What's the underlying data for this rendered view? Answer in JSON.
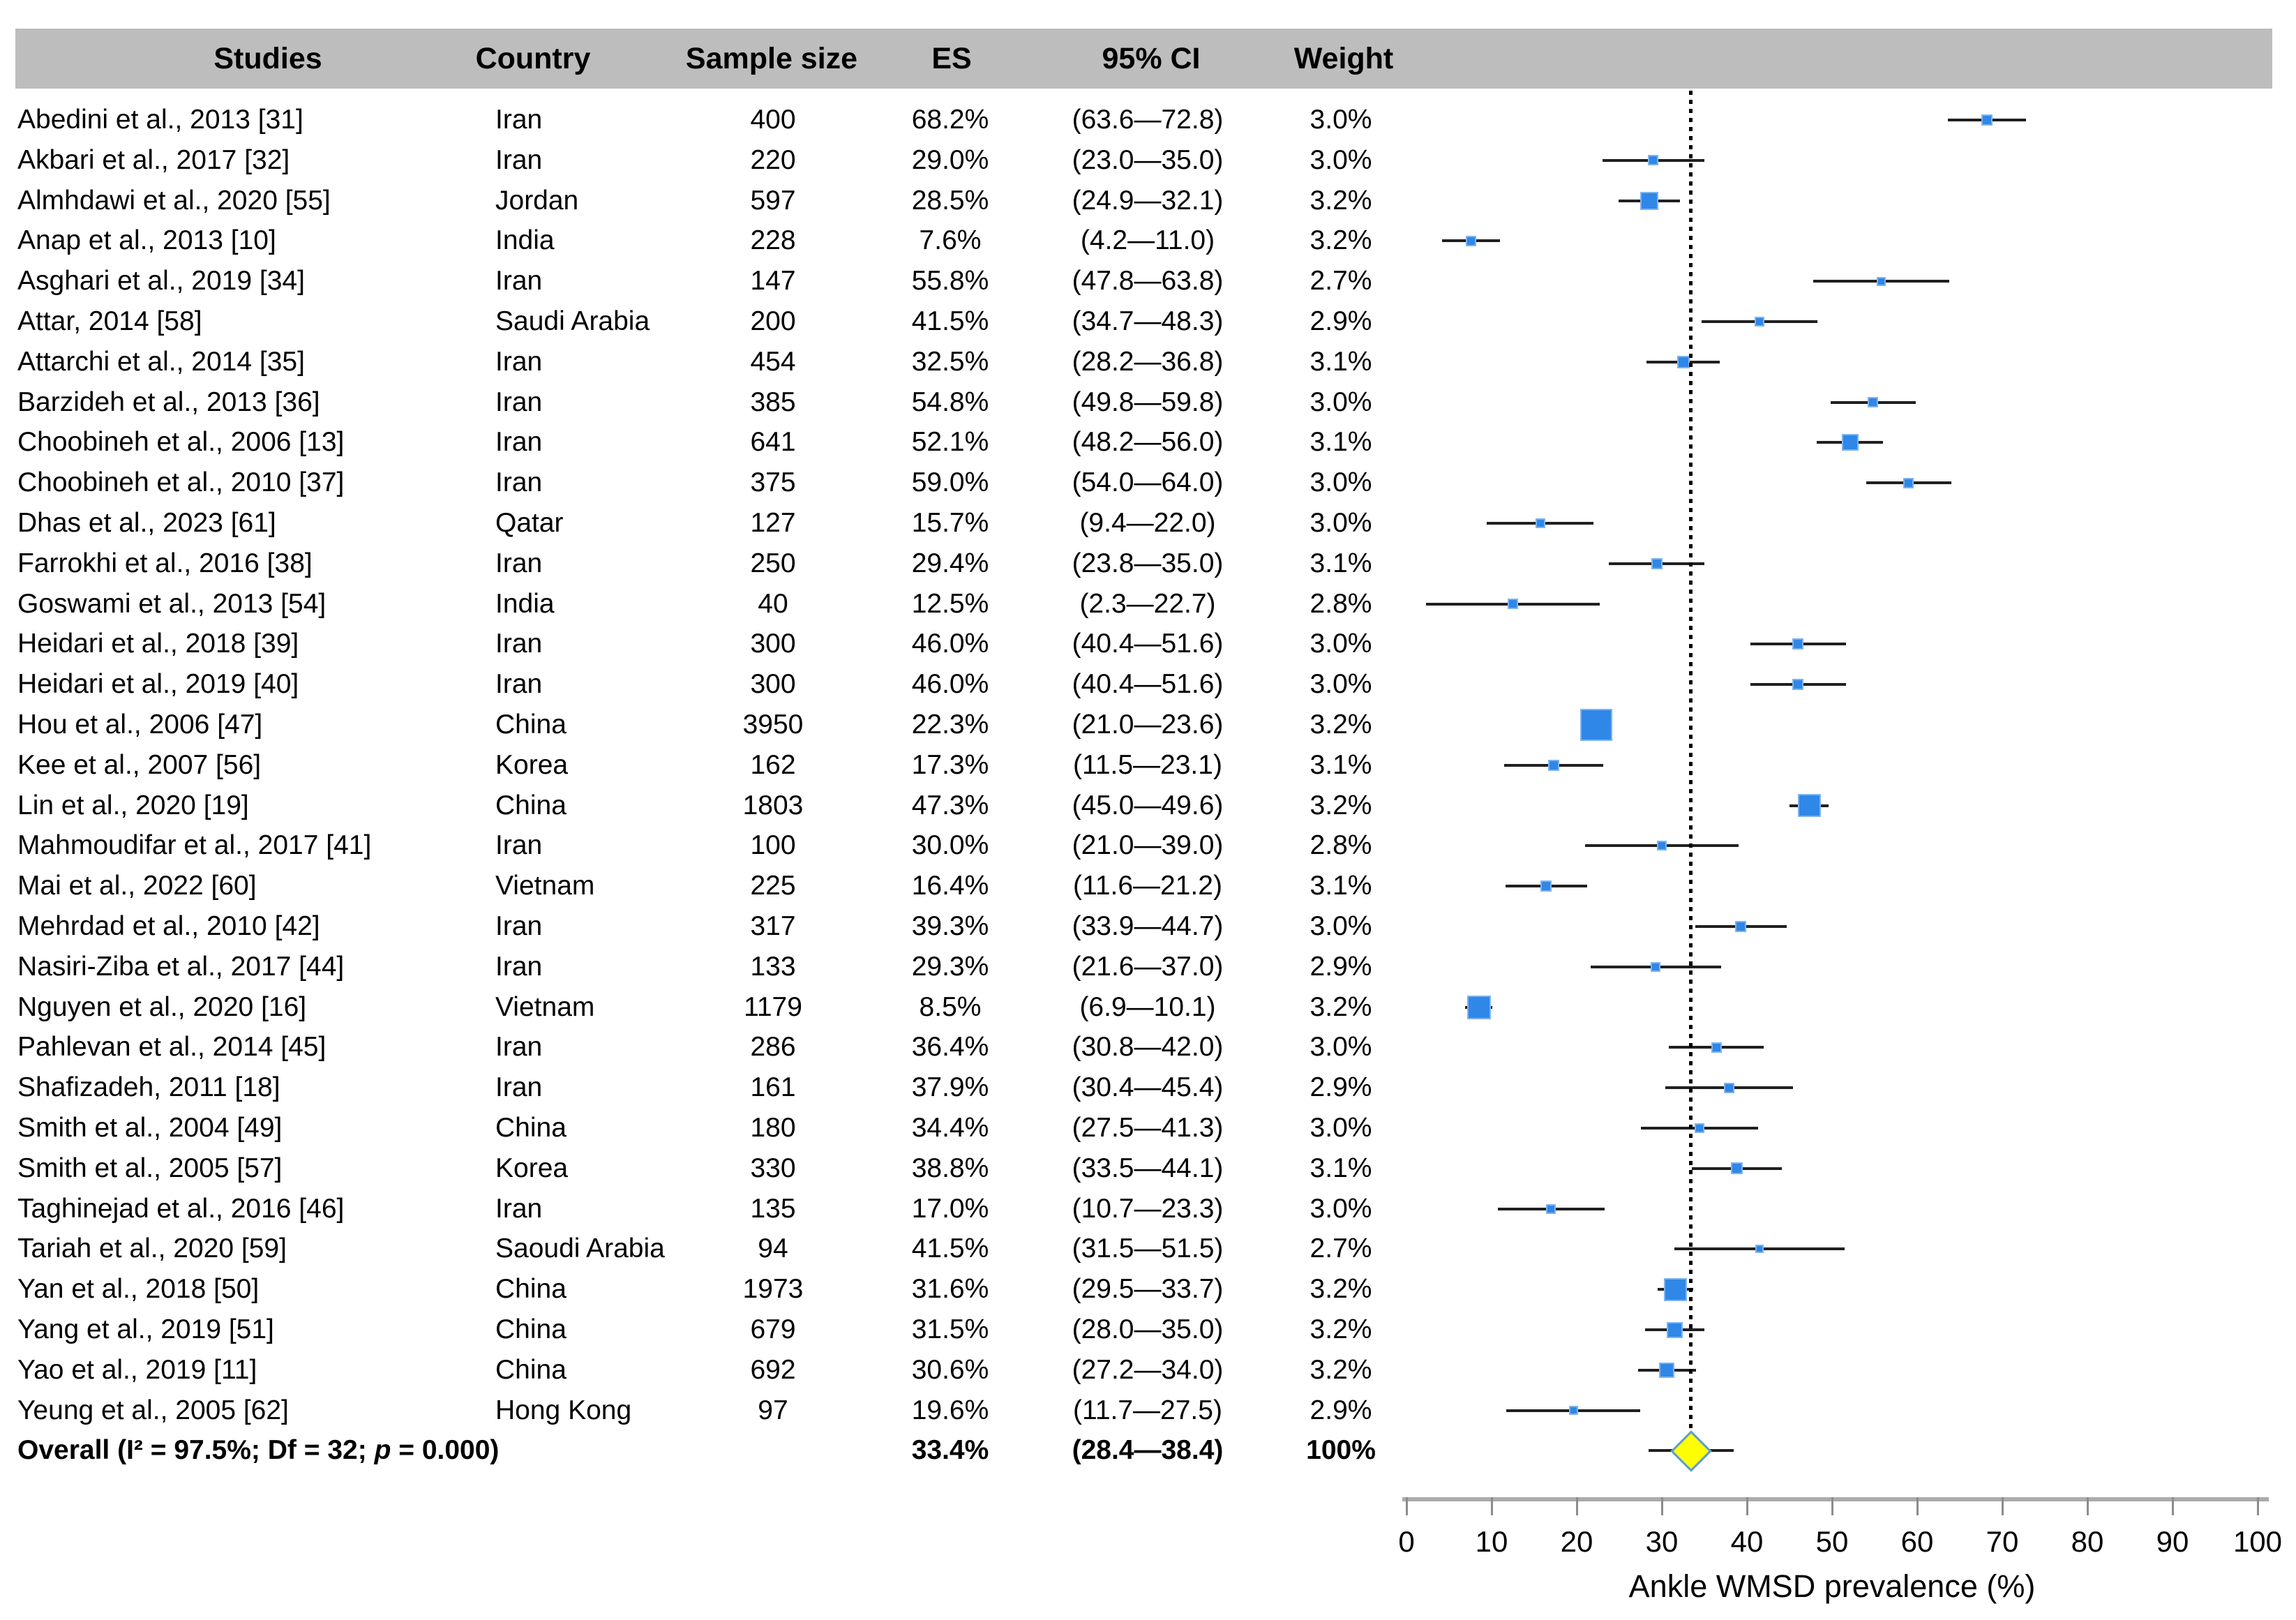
{
  "figure_title": "Forest plot of ankle WMSD prevalence meta-analysis",
  "colors": {
    "header_bg": "#bdbdbd",
    "marker_fill": "#2f87e8",
    "marker_border": "#7fb3ef",
    "ci_line": "#202020",
    "diamond_fill": "#ffff00",
    "diamond_border": "#5b9bd5",
    "reference_line": "#000000",
    "axis_bar": "#ababab",
    "text": "#000000"
  },
  "chart_data": {
    "type": "forest",
    "xlabel": "Ankle WMSD prevalence (%)",
    "xlim": [
      0,
      100
    ],
    "x_ticks": [
      "0",
      "10",
      "20",
      "30",
      "40",
      "50",
      "60",
      "70",
      "80",
      "90",
      "100"
    ],
    "x_tick_values": [
      0,
      10,
      20,
      30,
      40,
      50,
      60,
      70,
      80,
      90,
      100
    ],
    "reference_line_value": 33.4,
    "grid": false,
    "columns": [
      "Studies",
      "Country",
      "Sample size",
      "ES",
      "95% CI",
      "Weight"
    ],
    "studies": [
      {
        "study": "Abedini et al., 2013 [31]",
        "country": "Iran",
        "n": "400",
        "es_label": "68.2%",
        "es": 68.2,
        "ci_label": "(63.6—72.8)",
        "lo": 63.6,
        "hi": 72.8,
        "weight": "3.0%",
        "size": 16
      },
      {
        "study": "Akbari et al., 2017 [32]",
        "country": "Iran",
        "n": "220",
        "es_label": "29.0%",
        "es": 29.0,
        "ci_label": "(23.0—35.0)",
        "lo": 23.0,
        "hi": 35.0,
        "weight": "3.0%",
        "size": 15
      },
      {
        "study": "Almhdawi et al., 2020 [55]",
        "country": "Jordan",
        "n": "597",
        "es_label": "28.5%",
        "es": 28.5,
        "ci_label": "(24.9—32.1)",
        "lo": 24.9,
        "hi": 32.1,
        "weight": "3.2%",
        "size": 26
      },
      {
        "study": "Anap et al., 2013 [10]",
        "country": "India",
        "n": "228",
        "es_label": "7.6%",
        "es": 7.6,
        "ci_label": "(4.2—11.0)",
        "lo": 4.2,
        "hi": 11.0,
        "weight": "3.2%",
        "size": 15
      },
      {
        "study": "Asghari et al., 2019 [34]",
        "country": "Iran",
        "n": "147",
        "es_label": "55.8%",
        "es": 55.8,
        "ci_label": "(47.8—63.8)",
        "lo": 47.8,
        "hi": 63.8,
        "weight": "2.7%",
        "size": 13
      },
      {
        "study": "Attar, 2014 [58]",
        "country": "Saudi Arabia",
        "n": "200",
        "es_label": "41.5%",
        "es": 41.5,
        "ci_label": "(34.7—48.3)",
        "lo": 34.7,
        "hi": 48.3,
        "weight": "2.9%",
        "size": 14
      },
      {
        "study": "Attarchi et al., 2014 [35]",
        "country": "Iran",
        "n": "454",
        "es_label": "32.5%",
        "es": 32.5,
        "ci_label": "(28.2—36.8)",
        "lo": 28.2,
        "hi": 36.8,
        "weight": "3.1%",
        "size": 18
      },
      {
        "study": "Barzideh et al., 2013 [36]",
        "country": "Iran",
        "n": "385",
        "es_label": "54.8%",
        "es": 54.8,
        "ci_label": "(49.8—59.8)",
        "lo": 49.8,
        "hi": 59.8,
        "weight": "3.0%",
        "size": 15
      },
      {
        "study": "Choobineh et al., 2006 [13]",
        "country": "Iran",
        "n": "641",
        "es_label": "52.1%",
        "es": 52.1,
        "ci_label": "(48.2—56.0)",
        "lo": 48.2,
        "hi": 56.0,
        "weight": "3.1%",
        "size": 24
      },
      {
        "study": "Choobineh et al., 2010 [37]",
        "country": "Iran",
        "n": "375",
        "es_label": "59.0%",
        "es": 59.0,
        "ci_label": "(54.0—64.0)",
        "lo": 54.0,
        "hi": 64.0,
        "weight": "3.0%",
        "size": 15
      },
      {
        "study": "Dhas et al., 2023 [61]",
        "country": "Qatar",
        "n": "127",
        "es_label": "15.7%",
        "es": 15.7,
        "ci_label": "(9.4—22.0)",
        "lo": 9.4,
        "hi": 22.0,
        "weight": "3.0%",
        "size": 14
      },
      {
        "study": "Farrokhi et al., 2016 [38]",
        "country": "Iran",
        "n": "250",
        "es_label": "29.4%",
        "es": 29.4,
        "ci_label": "(23.8—35.0)",
        "lo": 23.8,
        "hi": 35.0,
        "weight": "3.1%",
        "size": 16
      },
      {
        "study": "Goswami et al., 2013 [54]",
        "country": "India",
        "n": "40",
        "es_label": "12.5%",
        "es": 12.5,
        "ci_label": "(2.3—22.7)",
        "lo": 2.3,
        "hi": 22.7,
        "weight": "2.8%",
        "size": 15
      },
      {
        "study": "Heidari et al., 2018 [39]",
        "country": "Iran",
        "n": "300",
        "es_label": "46.0%",
        "es": 46.0,
        "ci_label": "(40.4—51.6)",
        "lo": 40.4,
        "hi": 51.6,
        "weight": "3.0%",
        "size": 16
      },
      {
        "study": "Heidari et al., 2019 [40]",
        "country": "Iran",
        "n": "300",
        "es_label": "46.0%",
        "es": 46.0,
        "ci_label": "(40.4—51.6)",
        "lo": 40.4,
        "hi": 51.6,
        "weight": "3.0%",
        "size": 16
      },
      {
        "study": "Hou et al., 2006 [47]",
        "country": "China",
        "n": "3950",
        "es_label": "22.3%",
        "es": 22.3,
        "ci_label": "(21.0—23.6)",
        "lo": 21.0,
        "hi": 23.6,
        "weight": "3.2%",
        "size": 46
      },
      {
        "study": "Kee et al., 2007 [56]",
        "country": "Korea",
        "n": "162",
        "es_label": "17.3%",
        "es": 17.3,
        "ci_label": "(11.5—23.1)",
        "lo": 11.5,
        "hi": 23.1,
        "weight": "3.1%",
        "size": 16
      },
      {
        "study": "Lin et al., 2020 [19]",
        "country": "China",
        "n": "1803",
        "es_label": "47.3%",
        "es": 47.3,
        "ci_label": "(45.0—49.6)",
        "lo": 45.0,
        "hi": 49.6,
        "weight": "3.2%",
        "size": 33
      },
      {
        "study": "Mahmoudifar et al., 2017 [41]",
        "country": "Iran",
        "n": "100",
        "es_label": "30.0%",
        "es": 30.0,
        "ci_label": "(21.0—39.0)",
        "lo": 21.0,
        "hi": 39.0,
        "weight": "2.8%",
        "size": 14
      },
      {
        "study": "Mai et al., 2022 [60]",
        "country": "Vietnam",
        "n": "225",
        "es_label": "16.4%",
        "es": 16.4,
        "ci_label": "(11.6—21.2)",
        "lo": 11.6,
        "hi": 21.2,
        "weight": "3.1%",
        "size": 16
      },
      {
        "study": "Mehrdad et al., 2010 [42]",
        "country": "Iran",
        "n": "317",
        "es_label": "39.3%",
        "es": 39.3,
        "ci_label": "(33.9—44.7)",
        "lo": 33.9,
        "hi": 44.7,
        "weight": "3.0%",
        "size": 16
      },
      {
        "study": "Nasiri-Ziba et al., 2017 [44]",
        "country": "Iran",
        "n": "133",
        "es_label": "29.3%",
        "es": 29.3,
        "ci_label": "(21.6—37.0)",
        "lo": 21.6,
        "hi": 37.0,
        "weight": "2.9%",
        "size": 14
      },
      {
        "study": "Nguyen et al., 2020 [16]",
        "country": "Vietnam",
        "n": "1179",
        "es_label": "8.5%",
        "es": 8.5,
        "ci_label": "(6.9—10.1)",
        "lo": 6.9,
        "hi": 10.1,
        "weight": "3.2%",
        "size": 34
      },
      {
        "study": "Pahlevan et al., 2014 [45]",
        "country": "Iran",
        "n": "286",
        "es_label": "36.4%",
        "es": 36.4,
        "ci_label": "(30.8—42.0)",
        "lo": 30.8,
        "hi": 42.0,
        "weight": "3.0%",
        "size": 15
      },
      {
        "study": "Shafizadeh, 2011 [18]",
        "country": "Iran",
        "n": "161",
        "es_label": "37.9%",
        "es": 37.9,
        "ci_label": "(30.4—45.4)",
        "lo": 30.4,
        "hi": 45.4,
        "weight": "2.9%",
        "size": 15
      },
      {
        "study": "Smith et al., 2004 [49]",
        "country": "China",
        "n": "180",
        "es_label": "34.4%",
        "es": 34.4,
        "ci_label": "(27.5—41.3)",
        "lo": 27.5,
        "hi": 41.3,
        "weight": "3.0%",
        "size": 14
      },
      {
        "study": "Smith et al., 2005 [57]",
        "country": "Korea",
        "n": "330",
        "es_label": "38.8%",
        "es": 38.8,
        "ci_label": "(33.5—44.1)",
        "lo": 33.5,
        "hi": 44.1,
        "weight": "3.1%",
        "size": 17
      },
      {
        "study": "Taghinejad et al., 2016 [46]",
        "country": "Iran",
        "n": "135",
        "es_label": "17.0%",
        "es": 17.0,
        "ci_label": "(10.7—23.3)",
        "lo": 10.7,
        "hi": 23.3,
        "weight": "3.0%",
        "size": 14
      },
      {
        "study": "Tariah et al., 2020 [59]",
        "country": "Saoudi Arabia",
        "n": "94",
        "es_label": "41.5%",
        "es": 41.5,
        "ci_label": "(31.5—51.5)",
        "lo": 31.5,
        "hi": 51.5,
        "weight": "2.7%",
        "size": 12
      },
      {
        "study": "Yan et al., 2018 [50]",
        "country": "China",
        "n": "1973",
        "es_label": "31.6%",
        "es": 31.6,
        "ci_label": "(29.5—33.7)",
        "lo": 29.5,
        "hi": 33.7,
        "weight": "3.2%",
        "size": 33
      },
      {
        "study": "Yang et al., 2019 [51]",
        "country": "China",
        "n": "679",
        "es_label": "31.5%",
        "es": 31.5,
        "ci_label": "(28.0—35.0)",
        "lo": 28.0,
        "hi": 35.0,
        "weight": "3.2%",
        "size": 23
      },
      {
        "study": "Yao et al., 2019 [11]",
        "country": "China",
        "n": "692",
        "es_label": "30.6%",
        "es": 30.6,
        "ci_label": "(27.2—34.0)",
        "lo": 27.2,
        "hi": 34.0,
        "weight": "3.2%",
        "size": 22
      },
      {
        "study": "Yeung et al., 2005 [62]",
        "country": "Hong Kong",
        "n": "97",
        "es_label": "19.6%",
        "es": 19.6,
        "ci_label": "(11.7—27.5)",
        "lo": 11.7,
        "hi": 27.5,
        "weight": "2.9%",
        "size": 13
      }
    ],
    "overall": {
      "label_prefix": "Overall (I² = 97.5%; Df = 32; ",
      "p_label": "p",
      "label_suffix": " = 0.000)",
      "es_label": "33.4%",
      "es": 33.4,
      "ci_label": "(28.4—38.4)",
      "lo": 28.4,
      "hi": 38.4,
      "weight": "100%"
    }
  }
}
